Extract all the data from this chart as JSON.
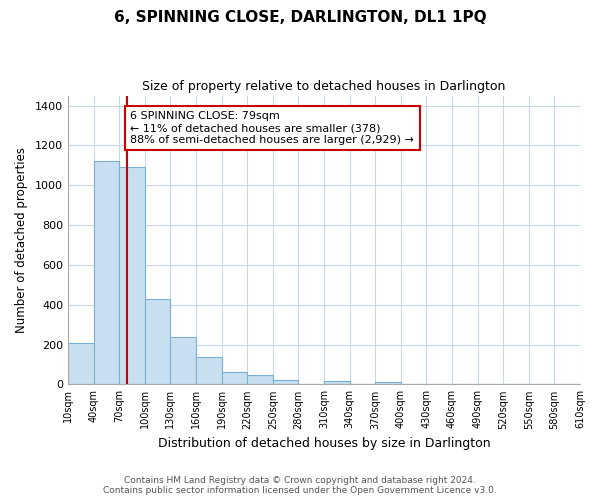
{
  "title": "6, SPINNING CLOSE, DARLINGTON, DL1 1PQ",
  "subtitle": "Size of property relative to detached houses in Darlington",
  "xlabel": "Distribution of detached houses by size in Darlington",
  "ylabel": "Number of detached properties",
  "bar_color": "#c8dff0",
  "bar_edge_color": "#7bafd4",
  "bin_edges": [
    10,
    40,
    70,
    100,
    130,
    160,
    190,
    220,
    250,
    280,
    310,
    340,
    370,
    400,
    430,
    460,
    490,
    520,
    550,
    580,
    610
  ],
  "bar_heights": [
    210,
    1120,
    1090,
    430,
    240,
    140,
    60,
    47,
    20,
    0,
    15,
    0,
    10,
    0,
    0,
    0,
    0,
    0,
    0,
    0
  ],
  "property_size": 79,
  "vline_color": "#cc0000",
  "annotation_line1": "6 SPINNING CLOSE: 79sqm",
  "annotation_line2": "← 11% of detached houses are smaller (378)",
  "annotation_line3": "88% of semi-detached houses are larger (2,929) →",
  "annotation_box_color": "#ffffff",
  "annotation_box_edge": "#cc0000",
  "ylim": [
    0,
    1450
  ],
  "yticks": [
    0,
    200,
    400,
    600,
    800,
    1000,
    1200,
    1400
  ],
  "tick_labels": [
    "10sqm",
    "40sqm",
    "70sqm",
    "100sqm",
    "130sqm",
    "160sqm",
    "190sqm",
    "220sqm",
    "250sqm",
    "280sqm",
    "310sqm",
    "340sqm",
    "370sqm",
    "400sqm",
    "430sqm",
    "460sqm",
    "490sqm",
    "520sqm",
    "550sqm",
    "580sqm",
    "610sqm"
  ],
  "footnote1": "Contains HM Land Registry data © Crown copyright and database right 2024.",
  "footnote2": "Contains public sector information licensed under the Open Government Licence v3.0.",
  "background_color": "#ffffff",
  "grid_color": "#c8d8e8",
  "title_fontsize": 11,
  "subtitle_fontsize": 9
}
